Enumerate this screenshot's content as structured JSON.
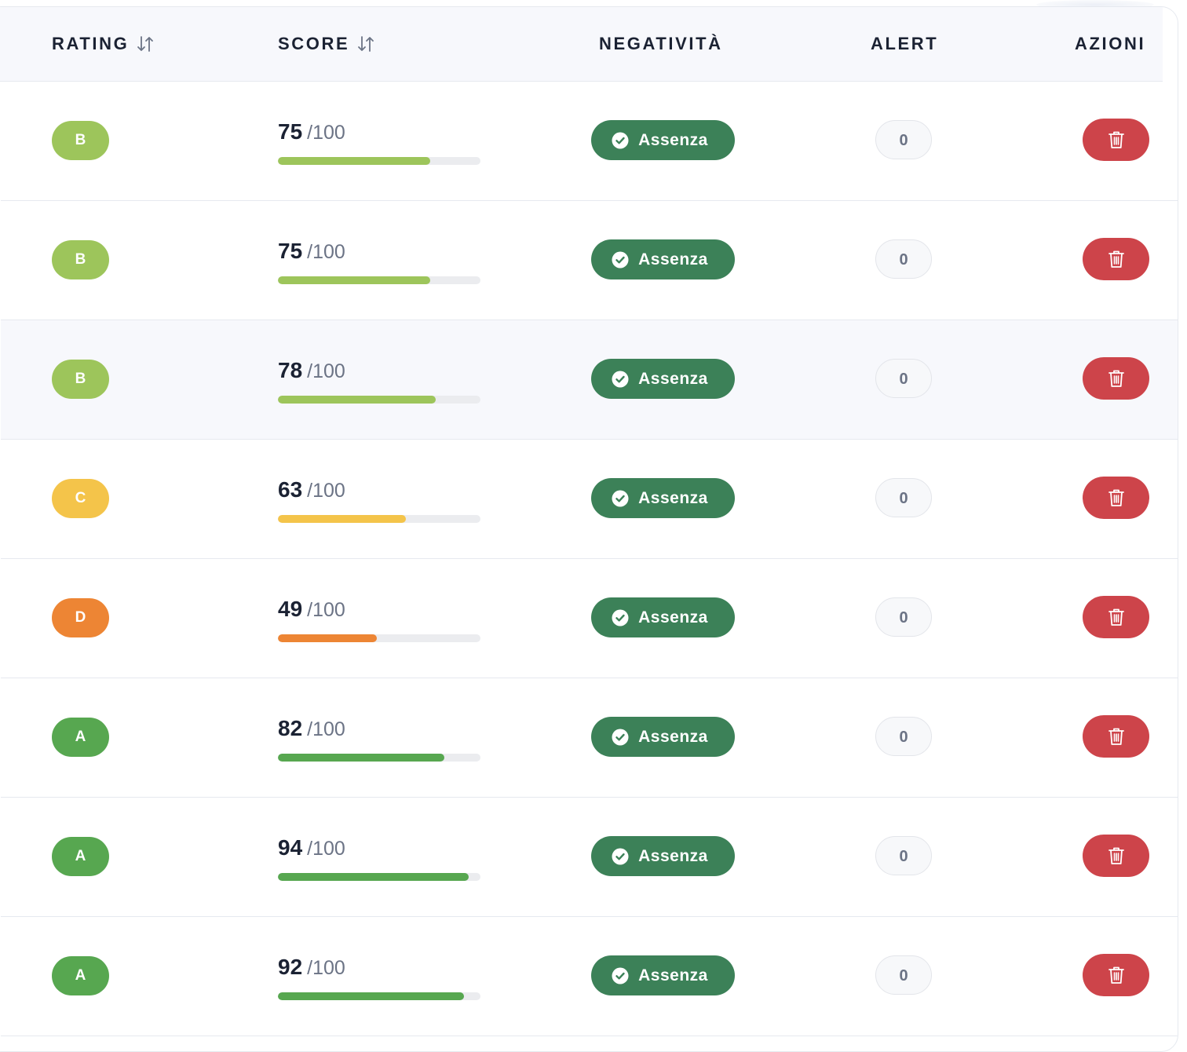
{
  "header": {
    "rating": "RATING",
    "score": "SCORE",
    "negativita": "NEGATIVITÀ",
    "alert": "ALERT",
    "azioni": "AZIONI"
  },
  "colors": {
    "rating_A": "#57a750",
    "rating_B": "#9dc55b",
    "rating_C": "#f4c44a",
    "rating_D": "#ed8534",
    "negativita_badge": "#3c8158",
    "delete_button": "#cd444a",
    "bar_track": "#ebecef"
  },
  "icons": {
    "sort": "sort-arrows-icon",
    "check": "check-circle-icon",
    "delete": "trash-icon"
  },
  "rows": [
    {
      "rating": "B",
      "score": "75",
      "max": "/100",
      "negativita": "Assenza",
      "alert": "0",
      "score_fraction": 0.75
    },
    {
      "rating": "B",
      "score": "75",
      "max": "/100",
      "negativita": "Assenza",
      "alert": "0",
      "score_fraction": 0.75
    },
    {
      "rating": "B",
      "score": "78",
      "max": "/100",
      "negativita": "Assenza",
      "alert": "0",
      "score_fraction": 0.78
    },
    {
      "rating": "C",
      "score": "63",
      "max": "/100",
      "negativita": "Assenza",
      "alert": "0",
      "score_fraction": 0.63
    },
    {
      "rating": "D",
      "score": "49",
      "max": "/100",
      "negativita": "Assenza",
      "alert": "0",
      "score_fraction": 0.49
    },
    {
      "rating": "A",
      "score": "82",
      "max": "/100",
      "negativita": "Assenza",
      "alert": "0",
      "score_fraction": 0.82
    },
    {
      "rating": "A",
      "score": "94",
      "max": "/100",
      "negativita": "Assenza",
      "alert": "0",
      "score_fraction": 0.94
    },
    {
      "rating": "A",
      "score": "92",
      "max": "/100",
      "negativita": "Assenza",
      "alert": "0",
      "score_fraction": 0.92
    }
  ]
}
